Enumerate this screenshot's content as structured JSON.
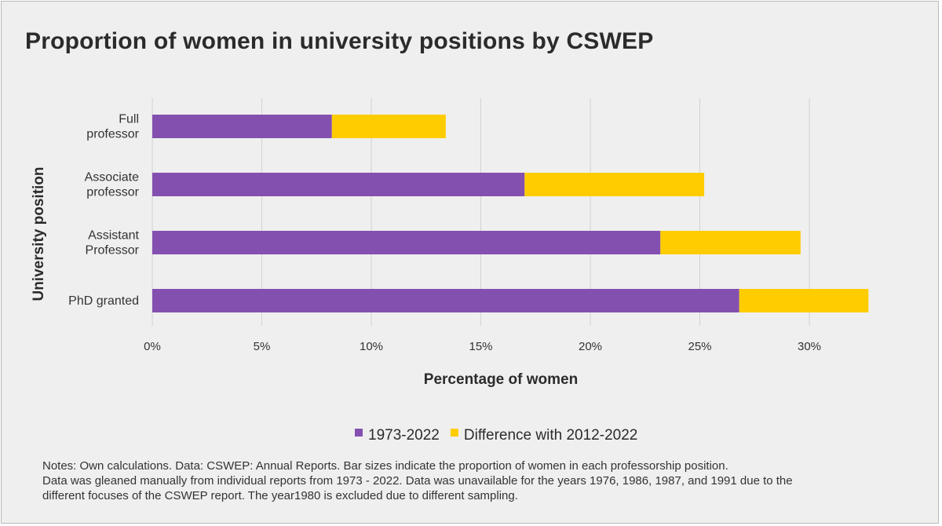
{
  "title": "Proportion of women in university positions by CSWEP",
  "chart_data": {
    "type": "bar",
    "orientation": "horizontal",
    "stacked": true,
    "title": "Proportion of women in university positions by CSWEP",
    "xlabel": "Percentage of women",
    "ylabel": "University position",
    "categories": [
      [
        "Full",
        "professor"
      ],
      [
        "Associate",
        "professor"
      ],
      [
        "Assistant",
        "Professor"
      ],
      [
        "PhD granted"
      ]
    ],
    "series": [
      {
        "name": "1973-2022",
        "color": "#8450b0",
        "values": [
          8.2,
          17.0,
          23.2,
          26.8
        ]
      },
      {
        "name": "Difference with 2012-2022",
        "color": "#ffcc00",
        "values": [
          5.2,
          8.2,
          6.4,
          5.9
        ]
      }
    ],
    "xlim": [
      0,
      35
    ],
    "xticks": [
      "0%",
      "5%",
      "10%",
      "15%",
      "20%",
      "25%",
      "30%"
    ],
    "grid": "vertical",
    "legend": "bottom"
  },
  "notes": [
    "Notes: Own calculations. Data: CSWEP: Annual Reports. Bar sizes indicate the proportion of women in each professorship position.",
    "Data was gleaned manually from individual reports from 1973 - 2022. Data was unavailable for the years 1976, 1986, 1987, and 1991 due to the",
    "different focuses of the CSWEP report. The year1980 is excluded due to different sampling."
  ]
}
